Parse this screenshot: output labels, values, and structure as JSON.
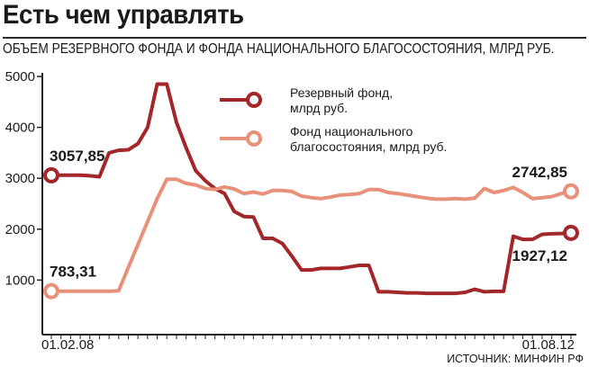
{
  "header": {
    "title": "Есть чем управлять",
    "subtitle": "ОБЪЕМ РЕЗЕРВНОГО ФОНДА И ФОНДА НАЦИОНАЛЬНОГО БЛАГОСОСТОЯНИЯ, МЛРД РУБ."
  },
  "source": "ИСТОЧНИК: МИНФИН РФ",
  "chart_data": {
    "type": "line",
    "x_labels": [
      {
        "index": 0,
        "label": "01.02.08"
      },
      {
        "index": 54,
        "label": "01.08.12"
      }
    ],
    "ylim": [
      0,
      5000
    ],
    "yticks": [
      0,
      1000,
      2000,
      3000,
      4000,
      5000
    ],
    "grid": false,
    "legend_position": "top-center",
    "series": [
      {
        "name": "Резервный фонд,\nмлрд руб.",
        "color": "#a3262a",
        "values": [
          3057.85,
          3060,
          3060,
          3060,
          3050,
          3030,
          3500,
          3550,
          3560,
          3680,
          4000,
          4850,
          4850,
          4100,
          3600,
          3150,
          2950,
          2800,
          2700,
          2350,
          2250,
          2240,
          1820,
          1820,
          1720,
          1470,
          1200,
          1200,
          1230,
          1230,
          1230,
          1260,
          1290,
          1290,
          770,
          770,
          760,
          750,
          750,
          740,
          740,
          740,
          740,
          760,
          820,
          770,
          780,
          780,
          1860,
          1800,
          1800,
          1900,
          1910,
          1915,
          1927.12
        ],
        "first_label": "3057,85",
        "last_label": "1927,12"
      },
      {
        "name": "Фонд национального\nблагосостояния, млрд руб.",
        "color": "#e8917a",
        "values": [
          783.31,
          783,
          783,
          783,
          783,
          783,
          783,
          790,
          1250,
          1700,
          2150,
          2600,
          2980,
          2980,
          2900,
          2870,
          2800,
          2780,
          2830,
          2790,
          2700,
          2730,
          2690,
          2760,
          2760,
          2740,
          2650,
          2620,
          2600,
          2630,
          2670,
          2680,
          2700,
          2780,
          2780,
          2720,
          2700,
          2670,
          2640,
          2610,
          2590,
          2590,
          2600,
          2590,
          2610,
          2800,
          2720,
          2760,
          2820,
          2720,
          2600,
          2620,
          2640,
          2700,
          2742.85
        ],
        "first_label": "783,31",
        "last_label": "2742,85"
      }
    ]
  }
}
